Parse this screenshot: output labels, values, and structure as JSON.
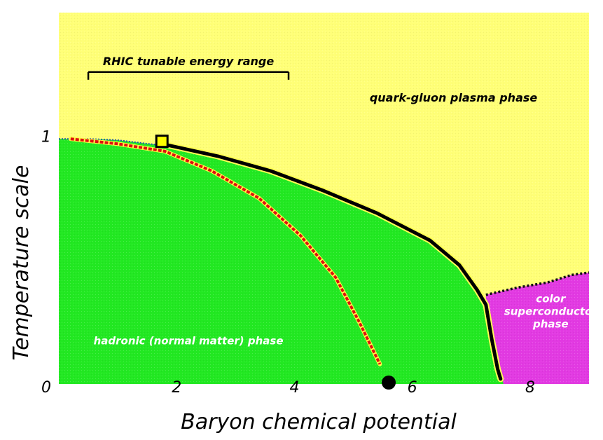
{
  "chart_data": {
    "type": "diagram",
    "xlabel": "Baryon chemical potential",
    "ylabel": "Temperature scale",
    "xlim": [
      0,
      9
    ],
    "ylim": [
      0,
      1.5
    ],
    "x_ticks": [
      {
        "value": 0,
        "label": "0"
      },
      {
        "value": 2,
        "label": "2"
      },
      {
        "value": 4,
        "label": "4"
      },
      {
        "value": 6,
        "label": "6"
      },
      {
        "value": 8,
        "label": "8"
      }
    ],
    "y_ticks": [
      {
        "value": 1,
        "label": "1"
      }
    ],
    "phases": [
      {
        "name": "quark-gluon plasma phase",
        "color": "#ffff77",
        "label_lines": [
          "quark-gluon plasma phase"
        ],
        "label_at": [
          6.7,
          1.14
        ]
      },
      {
        "name": "hadronic (normal matter) phase",
        "color": "#22e822",
        "label_lines": [
          "hadronic (normal matter) phase"
        ],
        "label_at": [
          2.2,
          0.16
        ]
      },
      {
        "name": "color superconductor phase",
        "color": "#e23ae2",
        "label_lines": [
          "color",
          "superconductor",
          "phase"
        ],
        "label_at": [
          8.35,
          0.33
        ]
      }
    ],
    "hadronic_boundary": [
      [
        0,
        0.99
      ],
      [
        0.5,
        0.99
      ],
      [
        1.0,
        0.985
      ],
      [
        1.7,
        0.965
      ],
      [
        2.7,
        0.92
      ],
      [
        3.6,
        0.86
      ],
      [
        4.5,
        0.78
      ],
      [
        5.4,
        0.69
      ],
      [
        6.3,
        0.58
      ],
      [
        6.8,
        0.48
      ],
      [
        7.1,
        0.38
      ],
      [
        7.25,
        0.3
      ],
      [
        7.35,
        0.18
      ],
      [
        7.45,
        0.08
      ],
      [
        7.55,
        0
      ]
    ],
    "transition_line": [
      [
        1.75,
        0.97
      ],
      [
        2.7,
        0.92
      ],
      [
        3.6,
        0.86
      ],
      [
        4.5,
        0.78
      ],
      [
        5.4,
        0.69
      ],
      [
        6.3,
        0.58
      ],
      [
        6.8,
        0.48
      ],
      [
        7.1,
        0.38
      ],
      [
        7.25,
        0.32
      ],
      [
        7.35,
        0.18
      ],
      [
        7.45,
        0.06
      ],
      [
        7.5,
        0.02
      ]
    ],
    "superconductor_boundary": [
      [
        7.25,
        0.36
      ],
      [
        7.8,
        0.39
      ],
      [
        8.3,
        0.41
      ],
      [
        8.7,
        0.44
      ],
      [
        9.0,
        0.45
      ]
    ],
    "freezeout_curve": [
      [
        0.2,
        0.99
      ],
      [
        1.0,
        0.97
      ],
      [
        1.8,
        0.94
      ],
      [
        2.6,
        0.86
      ],
      [
        3.4,
        0.75
      ],
      [
        4.1,
        0.6
      ],
      [
        4.7,
        0.43
      ],
      [
        5.1,
        0.25
      ],
      [
        5.45,
        0.08
      ]
    ],
    "critical_point": {
      "x": 1.75,
      "y": 0.98
    },
    "nuclear_matter_point": {
      "x": 5.6,
      "y": 0
    },
    "annotations": [
      {
        "text": "RHIC tunable energy range",
        "range": [
          0.5,
          3.9
        ],
        "y": 1.26
      }
    ]
  }
}
